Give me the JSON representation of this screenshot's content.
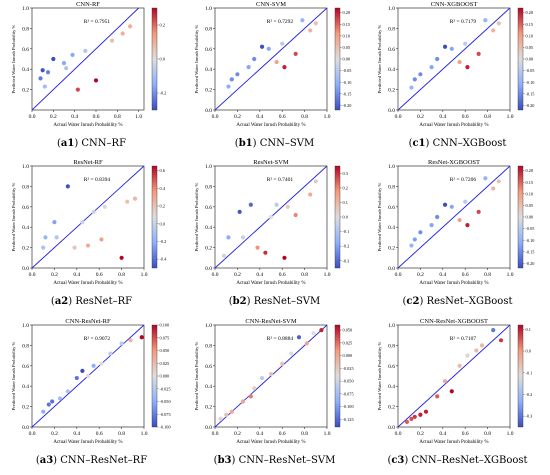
{
  "chart_data": [
    {
      "type": "scatter",
      "title": "CNN-RF",
      "r2": "R² = 0.7951",
      "xlabel": "Actual Water Inrush Probability %",
      "ylabel": "Predicted Water Inrush Probability %",
      "xlim": [
        0,
        1.05
      ],
      "ylim": [
        0,
        1.0
      ],
      "x_ticks": [
        "0.0",
        "0.2",
        "0.4",
        "0.6",
        "0.8",
        "1.0"
      ],
      "y_ticks": [
        "0.2",
        "0.4",
        "0.6",
        "0.8",
        "1.0"
      ],
      "cbar_ticks": [
        "0.2",
        "0.0",
        "-0.2"
      ],
      "cbar_range": [
        -0.3,
        0.3
      ],
      "points": [
        {
          "x": 0.08,
          "y": 0.31,
          "e": -0.23
        },
        {
          "x": 0.1,
          "y": 0.39,
          "e": -0.29
        },
        {
          "x": 0.15,
          "y": 0.37,
          "e": -0.22
        },
        {
          "x": 0.2,
          "y": 0.5,
          "e": -0.3
        },
        {
          "x": 0.12,
          "y": 0.23,
          "e": -0.11
        },
        {
          "x": 0.3,
          "y": 0.46,
          "e": -0.16
        },
        {
          "x": 0.38,
          "y": 0.54,
          "e": -0.16
        },
        {
          "x": 0.32,
          "y": 0.41,
          "e": -0.09
        },
        {
          "x": 0.5,
          "y": 0.58,
          "e": -0.08
        },
        {
          "x": 0.43,
          "y": 0.2,
          "e": 0.23
        },
        {
          "x": 0.6,
          "y": 0.29,
          "e": 0.31
        },
        {
          "x": 0.75,
          "y": 0.68,
          "e": 0.07
        },
        {
          "x": 0.85,
          "y": 0.75,
          "e": 0.1
        },
        {
          "x": 0.92,
          "y": 0.82,
          "e": 0.1
        }
      ]
    },
    {
      "type": "scatter",
      "title": "CNN-SVM",
      "r2": "R² = 0.7292",
      "xlabel": "Actual Water Inrush Probability %",
      "ylabel": "Predicted Water Inrush Probability %",
      "xlim": [
        0,
        1.0
      ],
      "ylim": [
        0,
        1.0
      ],
      "x_ticks": [
        "0.0",
        "0.2",
        "0.4",
        "0.6",
        "0.8",
        "1.0"
      ],
      "y_ticks": [
        "0.0",
        "0.2",
        "0.4",
        "0.6",
        "0.8",
        "1.0"
      ],
      "cbar_ticks": [
        "0.20",
        "0.15",
        "0.10",
        "0.05",
        "0.00",
        "-0.05",
        "-0.10",
        "-0.15",
        "-0.20"
      ],
      "cbar_range": [
        -0.22,
        0.22
      ],
      "points": [
        {
          "x": 0.12,
          "y": 0.23,
          "e": -0.11
        },
        {
          "x": 0.15,
          "y": 0.3,
          "e": -0.15
        },
        {
          "x": 0.2,
          "y": 0.35,
          "e": -0.15
        },
        {
          "x": 0.3,
          "y": 0.42,
          "e": -0.12
        },
        {
          "x": 0.35,
          "y": 0.5,
          "e": -0.15
        },
        {
          "x": 0.42,
          "y": 0.62,
          "e": -0.22
        },
        {
          "x": 0.48,
          "y": 0.6,
          "e": -0.12
        },
        {
          "x": 0.55,
          "y": 0.47,
          "e": 0.1
        },
        {
          "x": 0.6,
          "y": 0.65,
          "e": -0.05
        },
        {
          "x": 0.62,
          "y": 0.42,
          "e": 0.2
        },
        {
          "x": 0.72,
          "y": 0.55,
          "e": 0.17
        },
        {
          "x": 0.78,
          "y": 0.88,
          "e": -0.1
        },
        {
          "x": 0.85,
          "y": 0.78,
          "e": 0.07
        },
        {
          "x": 0.9,
          "y": 0.85,
          "e": 0.05
        }
      ]
    },
    {
      "type": "scatter",
      "title": "CNN-XGBOOST",
      "r2": "R² = 0.7179",
      "xlabel": "Actual Water Inrush Probability %",
      "ylabel": "Predicted Water Inrush Probability %",
      "xlim": [
        0,
        1.0
      ],
      "ylim": [
        0,
        1.0
      ],
      "x_ticks": [
        "0.0",
        "0.2",
        "0.4",
        "0.6",
        "0.8",
        "1.0"
      ],
      "y_ticks": [
        "0.0",
        "0.2",
        "0.4",
        "0.6",
        "0.8",
        "1.0"
      ],
      "cbar_ticks": [
        "0.20",
        "0.15",
        "0.10",
        "0.05",
        "0.00",
        "-0.05",
        "-0.10",
        "-0.15",
        "-0.20"
      ],
      "cbar_range": [
        -0.22,
        0.22
      ],
      "points": [
        {
          "x": 0.12,
          "y": 0.22,
          "e": -0.1
        },
        {
          "x": 0.15,
          "y": 0.3,
          "e": -0.15
        },
        {
          "x": 0.2,
          "y": 0.35,
          "e": -0.15
        },
        {
          "x": 0.3,
          "y": 0.42,
          "e": -0.12
        },
        {
          "x": 0.35,
          "y": 0.5,
          "e": -0.15
        },
        {
          "x": 0.42,
          "y": 0.62,
          "e": -0.22
        },
        {
          "x": 0.48,
          "y": 0.6,
          "e": -0.12
        },
        {
          "x": 0.55,
          "y": 0.47,
          "e": 0.1
        },
        {
          "x": 0.6,
          "y": 0.65,
          "e": -0.05
        },
        {
          "x": 0.62,
          "y": 0.42,
          "e": 0.2
        },
        {
          "x": 0.72,
          "y": 0.55,
          "e": 0.17
        },
        {
          "x": 0.78,
          "y": 0.88,
          "e": -0.1
        },
        {
          "x": 0.85,
          "y": 0.78,
          "e": 0.07
        },
        {
          "x": 0.9,
          "y": 0.85,
          "e": 0.05
        }
      ]
    },
    {
      "type": "scatter",
      "title": "ResNet-RF",
      "r2": "R² = 0.8394",
      "xlabel": "Actual Water Inrush Probability %",
      "ylabel": "Predicted Water Inrush Probability %",
      "xlim": [
        0,
        1.0
      ],
      "ylim": [
        0,
        1.0
      ],
      "x_ticks": [
        "0.0",
        "0.2",
        "0.4",
        "0.6",
        "0.8",
        "1.0"
      ],
      "y_ticks": [
        "0.0",
        "0.2",
        "0.4",
        "0.6",
        "0.8",
        "1.0"
      ],
      "cbar_ticks": [
        "0.6",
        "0.4",
        "0.2",
        "0.0",
        "-0.2",
        "-0.4"
      ],
      "cbar_range": [
        -0.5,
        0.65
      ],
      "points": [
        {
          "x": 0.1,
          "y": 0.2,
          "e": -0.1
        },
        {
          "x": 0.12,
          "y": 0.3,
          "e": -0.18
        },
        {
          "x": 0.2,
          "y": 0.45,
          "e": -0.25
        },
        {
          "x": 0.22,
          "y": 0.3,
          "e": -0.08
        },
        {
          "x": 0.32,
          "y": 0.8,
          "e": -0.48
        },
        {
          "x": 0.38,
          "y": 0.2,
          "e": 0.18
        },
        {
          "x": 0.45,
          "y": 0.45,
          "e": 0.0
        },
        {
          "x": 0.5,
          "y": 0.22,
          "e": 0.28
        },
        {
          "x": 0.55,
          "y": 0.55,
          "e": 0.0
        },
        {
          "x": 0.62,
          "y": 0.28,
          "e": 0.34
        },
        {
          "x": 0.65,
          "y": 0.6,
          "e": 0.05
        },
        {
          "x": 0.8,
          "y": 0.1,
          "e": 0.65
        },
        {
          "x": 0.85,
          "y": 0.65,
          "e": 0.2
        },
        {
          "x": 0.92,
          "y": 0.68,
          "e": 0.24
        }
      ]
    },
    {
      "type": "scatter",
      "title": "ResNet-SVM",
      "r2": "R² = 0.7401",
      "xlabel": "Actual Water Inrush Probability %",
      "ylabel": "Predicted Water Inrush Probability %",
      "xlim": [
        0,
        1.0
      ],
      "ylim": [
        0,
        1.0
      ],
      "x_ticks": [
        "0.0",
        "0.2",
        "0.4",
        "0.6",
        "0.8",
        "1.0"
      ],
      "y_ticks": [
        "0.0",
        "0.2",
        "0.4",
        "0.6",
        "0.8",
        "1.0"
      ],
      "cbar_ticks": [
        "0.3",
        "0.2",
        "0.1",
        "0.0",
        "-0.1",
        "-0.2",
        "-0.3"
      ],
      "cbar_range": [
        -0.35,
        0.35
      ],
      "points": [
        {
          "x": 0.08,
          "y": 0.12,
          "e": -0.04
        },
        {
          "x": 0.12,
          "y": 0.3,
          "e": -0.18
        },
        {
          "x": 0.22,
          "y": 0.55,
          "e": -0.33
        },
        {
          "x": 0.25,
          "y": 0.3,
          "e": -0.05
        },
        {
          "x": 0.32,
          "y": 0.62,
          "e": -0.3
        },
        {
          "x": 0.38,
          "y": 0.2,
          "e": 0.18
        },
        {
          "x": 0.45,
          "y": 0.15,
          "e": 0.3
        },
        {
          "x": 0.5,
          "y": 0.5,
          "e": 0.0
        },
        {
          "x": 0.55,
          "y": 0.62,
          "e": -0.07
        },
        {
          "x": 0.62,
          "y": 0.1,
          "e": 0.35
        },
        {
          "x": 0.65,
          "y": 0.6,
          "e": 0.05
        },
        {
          "x": 0.72,
          "y": 0.52,
          "e": 0.2
        },
        {
          "x": 0.85,
          "y": 0.72,
          "e": 0.13
        },
        {
          "x": 0.9,
          "y": 0.85,
          "e": 0.05
        }
      ]
    },
    {
      "type": "scatter",
      "title": "ResNet-XGBOOST",
      "r2": "R² = 0.7206",
      "xlabel": "Actual Water Inrush Probability %",
      "ylabel": "Predicted Water Inrush Probability %",
      "xlim": [
        0,
        1.0
      ],
      "ylim": [
        0,
        1.0
      ],
      "x_ticks": [
        "0.0",
        "0.2",
        "0.4",
        "0.6",
        "0.8",
        "1.0"
      ],
      "y_ticks": [
        "0.0",
        "0.2",
        "0.4",
        "0.6",
        "0.8",
        "1.0"
      ],
      "cbar_ticks": [
        "0.20",
        "0.15",
        "0.10",
        "0.05",
        "0.00",
        "-0.05",
        "-0.10",
        "-0.15",
        "-0.20"
      ],
      "cbar_range": [
        -0.22,
        0.22
      ],
      "points": [
        {
          "x": 0.12,
          "y": 0.22,
          "e": -0.1
        },
        {
          "x": 0.15,
          "y": 0.28,
          "e": -0.13
        },
        {
          "x": 0.2,
          "y": 0.35,
          "e": -0.15
        },
        {
          "x": 0.3,
          "y": 0.42,
          "e": -0.12
        },
        {
          "x": 0.35,
          "y": 0.5,
          "e": -0.15
        },
        {
          "x": 0.42,
          "y": 0.62,
          "e": -0.22
        },
        {
          "x": 0.48,
          "y": 0.6,
          "e": -0.12
        },
        {
          "x": 0.55,
          "y": 0.47,
          "e": 0.1
        },
        {
          "x": 0.6,
          "y": 0.65,
          "e": -0.05
        },
        {
          "x": 0.62,
          "y": 0.42,
          "e": 0.2
        },
        {
          "x": 0.72,
          "y": 0.55,
          "e": 0.17
        },
        {
          "x": 0.78,
          "y": 0.88,
          "e": -0.1
        },
        {
          "x": 0.85,
          "y": 0.78,
          "e": 0.07
        },
        {
          "x": 0.9,
          "y": 0.85,
          "e": 0.05
        }
      ]
    },
    {
      "type": "scatter",
      "title": "CNN-ResNet-RF",
      "r2": "R² = 0.9072",
      "xlabel": "Actual Water Inrush Probability %",
      "ylabel": "Predicted Water Inrush Probability %",
      "xlim": [
        0,
        1.0
      ],
      "ylim": [
        0,
        1.0
      ],
      "x_ticks": [
        "0.0",
        "0.2",
        "0.4",
        "0.6",
        "0.8",
        "1.0"
      ],
      "y_ticks": [
        "0.0",
        "0.2",
        "0.4",
        "0.6",
        "0.8",
        "1.0"
      ],
      "cbar_ticks": [
        "0.100",
        "0.075",
        "0.050",
        "0.025",
        "0.000",
        "-0.025",
        "-0.050",
        "-0.075",
        "-0.100"
      ],
      "cbar_range": [
        -0.1,
        0.1
      ],
      "points": [
        {
          "x": 0.1,
          "y": 0.15,
          "e": -0.05
        },
        {
          "x": 0.15,
          "y": 0.22,
          "e": -0.08
        },
        {
          "x": 0.18,
          "y": 0.25,
          "e": -0.08
        },
        {
          "x": 0.25,
          "y": 0.28,
          "e": -0.04
        },
        {
          "x": 0.32,
          "y": 0.35,
          "e": -0.03
        },
        {
          "x": 0.4,
          "y": 0.48,
          "e": -0.08
        },
        {
          "x": 0.45,
          "y": 0.55,
          "e": -0.1
        },
        {
          "x": 0.5,
          "y": 0.5,
          "e": 0.0
        },
        {
          "x": 0.55,
          "y": 0.6,
          "e": -0.05
        },
        {
          "x": 0.62,
          "y": 0.62,
          "e": 0.0
        },
        {
          "x": 0.7,
          "y": 0.72,
          "e": -0.02
        },
        {
          "x": 0.8,
          "y": 0.82,
          "e": -0.02
        },
        {
          "x": 0.88,
          "y": 0.85,
          "e": 0.03
        },
        {
          "x": 0.98,
          "y": 0.88,
          "e": 0.1
        }
      ]
    },
    {
      "type": "scatter",
      "title": "CNN-ResNet-SVM",
      "r2": "R² = 0.8884",
      "xlabel": "Actual Water Inrush Probability %",
      "ylabel": "Predicted Water Inrush Probability %",
      "xlim": [
        0,
        1.0
      ],
      "ylim": [
        0,
        1.0
      ],
      "x_ticks": [
        "0.0",
        "0.2",
        "0.4",
        "0.6",
        "0.8",
        "1.0"
      ],
      "y_ticks": [
        "0.0",
        "0.2",
        "0.4",
        "0.6",
        "0.8",
        "1.0"
      ],
      "cbar_ticks": [
        "0.050",
        "0.025",
        "0.000",
        "-0.025",
        "-0.050",
        "-0.075",
        "-0.100",
        "-0.125"
      ],
      "cbar_range": [
        -0.14,
        0.06
      ],
      "points": [
        {
          "x": 0.05,
          "y": 0.08,
          "e": -0.03
        },
        {
          "x": 0.1,
          "y": 0.12,
          "e": -0.02
        },
        {
          "x": 0.15,
          "y": 0.15,
          "e": 0.0
        },
        {
          "x": 0.25,
          "y": 0.25,
          "e": 0.0
        },
        {
          "x": 0.32,
          "y": 0.3,
          "e": 0.02
        },
        {
          "x": 0.35,
          "y": 0.38,
          "e": -0.03
        },
        {
          "x": 0.42,
          "y": 0.48,
          "e": -0.06
        },
        {
          "x": 0.5,
          "y": 0.52,
          "e": -0.02
        },
        {
          "x": 0.6,
          "y": 0.62,
          "e": -0.02
        },
        {
          "x": 0.68,
          "y": 0.72,
          "e": -0.04
        },
        {
          "x": 0.75,
          "y": 0.88,
          "e": -0.13
        },
        {
          "x": 0.82,
          "y": 0.82,
          "e": 0.0
        },
        {
          "x": 0.88,
          "y": 0.92,
          "e": -0.04
        },
        {
          "x": 0.95,
          "y": 0.95,
          "e": 0.05
        }
      ]
    },
    {
      "type": "scatter",
      "title": "CNN-ResNet-XGBOOST",
      "r2": "R² = 0.7107",
      "xlabel": "Actual Water Inrush Probability %",
      "ylabel": "Predicted Water Inrush Probability %",
      "xlim": [
        0,
        1.0
      ],
      "ylim": [
        0,
        1.0
      ],
      "x_ticks": [
        "0.0",
        "0.2",
        "0.4",
        "0.6",
        "0.8",
        "1.0"
      ],
      "y_ticks": [
        "0.0",
        "0.2",
        "0.4",
        "0.6",
        "0.8",
        "1.0"
      ],
      "cbar_ticks": [
        "0.1",
        "0.0",
        "-0.1",
        "-0.2",
        "-0.3"
      ],
      "cbar_range": [
        -0.35,
        0.12
      ],
      "points": [
        {
          "x": 0.08,
          "y": 0.05,
          "e": 0.05
        },
        {
          "x": 0.12,
          "y": 0.08,
          "e": 0.06
        },
        {
          "x": 0.15,
          "y": 0.1,
          "e": 0.08
        },
        {
          "x": 0.2,
          "y": 0.12,
          "e": 0.1
        },
        {
          "x": 0.25,
          "y": 0.15,
          "e": 0.1
        },
        {
          "x": 0.35,
          "y": 0.3,
          "e": 0.05
        },
        {
          "x": 0.42,
          "y": 0.45,
          "e": -0.03
        },
        {
          "x": 0.48,
          "y": 0.35,
          "e": 0.12
        },
        {
          "x": 0.55,
          "y": 0.6,
          "e": -0.05
        },
        {
          "x": 0.62,
          "y": 0.7,
          "e": -0.1
        },
        {
          "x": 0.7,
          "y": 0.75,
          "e": -0.05
        },
        {
          "x": 0.75,
          "y": 0.8,
          "e": -0.05
        },
        {
          "x": 0.85,
          "y": 0.95,
          "e": -0.3
        },
        {
          "x": 0.92,
          "y": 0.85,
          "e": 0.08
        }
      ]
    }
  ],
  "captions": [
    {
      "id": "a1",
      "name": "CNN–RF"
    },
    {
      "id": "b1",
      "name": "CNN–SVM"
    },
    {
      "id": "c1",
      "name": "CNN–XGBoost"
    },
    {
      "id": "a2",
      "name": "ResNet–RF"
    },
    {
      "id": "b2",
      "name": "ResNet–SVM"
    },
    {
      "id": "c2",
      "name": "ResNet–XGBoost"
    },
    {
      "id": "a3",
      "name": "CNN–ResNet–RF"
    },
    {
      "id": "b3",
      "name": "CNN–ResNet–SVM"
    },
    {
      "id": "c3",
      "name": "CNN–ResNet–XGBoost"
    }
  ]
}
